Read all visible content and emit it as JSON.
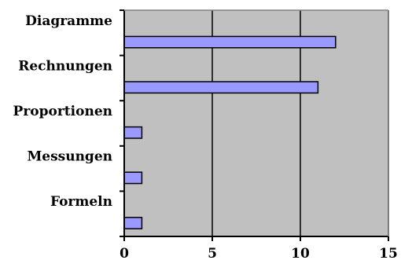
{
  "colors": {
    "plot_background": "#c0c0c0",
    "bar_fill": "#9999ff",
    "bar_stroke": "#000000",
    "gridline": "#000000",
    "axis": "#000000"
  },
  "chart_data": {
    "type": "bar",
    "orientation": "horizontal",
    "categories": [
      "Diagramme",
      "Rechnungen",
      "Proportionen",
      "Messungen",
      "Formeln"
    ],
    "values": [
      12,
      11,
      1,
      1,
      1
    ],
    "xlim": [
      0,
      15
    ],
    "x_ticks": [
      "0",
      "5",
      "10",
      "15"
    ],
    "title": "",
    "xlabel": "",
    "ylabel": "",
    "grid": "vertical major gridlines",
    "legend": "none"
  }
}
